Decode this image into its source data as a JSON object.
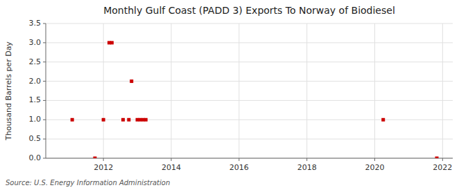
{
  "chart_data": {
    "type": "scatter",
    "title": "Monthly Gulf Coast (PADD 3) Exports To Norway of Biodiesel",
    "y_label": "Thousand Barrels per Day",
    "annotations": [
      "Source: U.S. Energy Information Administration"
    ],
    "x": [
      2011.08,
      2011.75,
      2012.0,
      2012.17,
      2012.25,
      2012.58,
      2012.75,
      2012.83,
      2013.0,
      2013.08,
      2013.17,
      2013.25,
      2020.25,
      2021.83
    ],
    "values": [
      1.0,
      0.0,
      1.0,
      3.0,
      3.0,
      1.0,
      1.0,
      2.0,
      1.0,
      1.0,
      1.0,
      1.0,
      1.0,
      0.0
    ],
    "color": "#cc0000",
    "marker": "square",
    "xlim": [
      2010.3,
      2022.3
    ],
    "ylim": [
      0,
      3.5
    ],
    "xticks": [
      2012,
      2014,
      2016,
      2018,
      2020,
      2022
    ],
    "yticks": [
      {
        "value": 0.0,
        "label": "0.0"
      },
      0.5,
      {
        "value": 1.0,
        "label": "1.0"
      },
      1.5,
      {
        "value": 2.0,
        "label": "2.0"
      },
      2.5,
      {
        "value": 3.0,
        "label": "3.0"
      },
      3.5
    ],
    "grid": true
  }
}
